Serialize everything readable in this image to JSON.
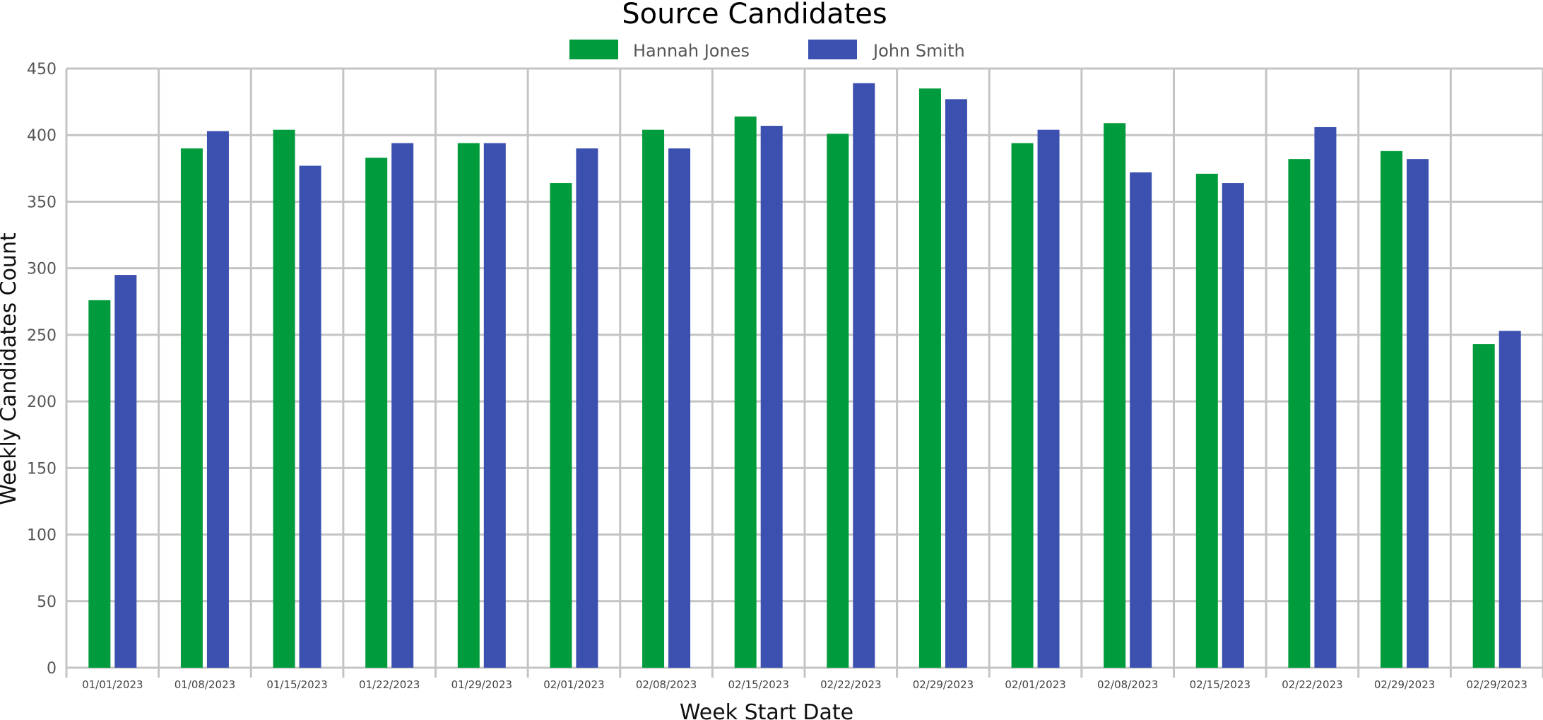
{
  "chart_data": {
    "type": "bar",
    "title": "Source Candidates",
    "xlabel": "Week Start Date",
    "ylabel": "Weekly Candidates Count",
    "ylim": [
      0,
      450
    ],
    "yticks": [
      0,
      50,
      100,
      150,
      200,
      250,
      300,
      350,
      400,
      450
    ],
    "grid": true,
    "legend_position": "top-center",
    "categories": [
      "01/01/2023",
      "01/08/2023",
      "01/15/2023",
      "01/22/2023",
      "01/29/2023",
      "02/01/2023",
      "02/08/2023",
      "02/15/2023",
      "02/22/2023",
      "02/29/2023",
      "02/01/2023",
      "02/08/2023",
      "02/15/2023",
      "02/22/2023",
      "02/29/2023",
      "02/29/2023"
    ],
    "series": [
      {
        "name": "Hannah Jones",
        "color": "#009B3C",
        "values": [
          276,
          390,
          404,
          383,
          394,
          364,
          404,
          414,
          401,
          435,
          394,
          409,
          371,
          382,
          388,
          243
        ]
      },
      {
        "name": "John Smith",
        "color": "#3C50B0",
        "values": [
          295,
          403,
          377,
          394,
          394,
          390,
          390,
          407,
          439,
          427,
          404,
          372,
          364,
          406,
          382,
          253
        ]
      }
    ]
  }
}
